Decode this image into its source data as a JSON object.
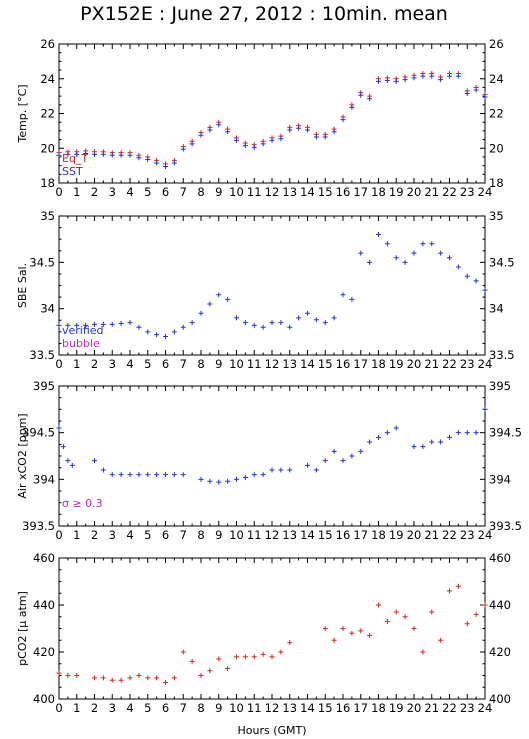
{
  "title": "PX152E : June 27, 2012 : 10min. mean",
  "xlabel": "Hours (GMT)",
  "x_ticks": [
    "0",
    "1",
    "2",
    "3",
    "4",
    "5",
    "6",
    "7",
    "8",
    "9",
    "10",
    "11",
    "12",
    "13",
    "14",
    "15",
    "16",
    "17",
    "18",
    "19",
    "20",
    "21",
    "22",
    "23",
    "24"
  ],
  "colors": {
    "red": "#dd2222",
    "blue": "#2233dd",
    "magenta": "#cc22cc",
    "purple": "#7733bb"
  },
  "chart_data": [
    {
      "type": "scatter",
      "ylabel": "Temp. [°C]",
      "ylim": [
        18,
        26
      ],
      "yticks": [
        "18",
        "20",
        "22",
        "24",
        "26"
      ],
      "legend": [
        {
          "label": "Eq_T",
          "color": "#dd2222"
        },
        {
          "label": "SST",
          "color": "#2233dd"
        }
      ],
      "series": [
        {
          "name": "Eq_T",
          "color": "#dd2222",
          "x": [
            0,
            0.5,
            1,
            1.5,
            2,
            2.5,
            3,
            3.5,
            4,
            4.5,
            5,
            5.5,
            6,
            6.5,
            7,
            7.5,
            8,
            8.5,
            9,
            9.5,
            10,
            10.5,
            11,
            11.5,
            12,
            12.5,
            13,
            13.5,
            14,
            14.5,
            15,
            15.5,
            16,
            16.5,
            17,
            17.5,
            18,
            18.5,
            19,
            19.5,
            20,
            20.5,
            21,
            21.5,
            22,
            22.5,
            23,
            23.5,
            24
          ],
          "y": [
            19.75,
            19.8,
            19.8,
            19.85,
            19.8,
            19.8,
            19.75,
            19.75,
            19.75,
            19.6,
            19.5,
            19.3,
            19.1,
            19.3,
            20.1,
            20.4,
            20.9,
            21.2,
            21.5,
            21.1,
            20.6,
            20.3,
            20.2,
            20.4,
            20.6,
            20.7,
            21.2,
            21.3,
            21.2,
            20.8,
            20.8,
            21.1,
            21.8,
            22.5,
            23.2,
            23.0,
            24.0,
            24.05,
            24.0,
            24.1,
            24.2,
            24.3,
            24.3,
            24.1,
            24.3,
            24.3,
            23.3,
            23.5,
            23.1
          ]
        },
        {
          "name": "SST",
          "color": "#2233dd",
          "x": [
            0,
            0.5,
            1,
            1.5,
            2,
            2.5,
            3,
            3.5,
            4,
            4.5,
            5,
            5.5,
            6,
            6.5,
            7,
            7.5,
            8,
            8.5,
            9,
            9.5,
            10,
            10.5,
            11,
            11.5,
            12,
            12.5,
            13,
            13.5,
            14,
            14.5,
            15,
            15.5,
            16,
            16.5,
            17,
            17.5,
            18,
            18.5,
            19,
            19.5,
            20,
            20.5,
            21,
            21.5,
            22,
            22.5,
            23,
            23.5,
            24
          ],
          "y": [
            19.6,
            19.65,
            19.65,
            19.7,
            19.65,
            19.65,
            19.6,
            19.6,
            19.6,
            19.45,
            19.35,
            19.15,
            18.95,
            19.15,
            19.95,
            20.25,
            20.75,
            21.05,
            21.35,
            20.95,
            20.45,
            20.15,
            20.05,
            20.25,
            20.45,
            20.55,
            21.05,
            21.15,
            21.05,
            20.65,
            20.65,
            20.95,
            21.65,
            22.35,
            23.05,
            22.85,
            23.85,
            23.9,
            23.85,
            23.95,
            24.05,
            24.15,
            24.15,
            23.95,
            24.15,
            24.15,
            23.15,
            23.35,
            22.95
          ]
        }
      ]
    },
    {
      "type": "scatter",
      "ylabel": "SBE Sal.",
      "ylim": [
        33.5,
        35
      ],
      "yticks": [
        "33.5",
        "34",
        "34.5",
        "35"
      ],
      "legend": [
        {
          "label": "verified",
          "color": "#2233dd"
        },
        {
          "label": "bubble",
          "color": "#cc22cc"
        }
      ],
      "series": [
        {
          "name": "verified",
          "color": "#2233dd",
          "x": [
            0,
            0.5,
            1,
            1.5,
            2,
            2.5,
            3,
            3.5,
            4,
            4.5,
            5,
            5.5,
            6,
            6.5,
            7,
            7.5,
            8,
            8.5,
            9,
            9.5,
            10,
            10.5,
            11,
            11.5,
            12,
            12.5,
            13,
            13.5,
            14,
            14.5,
            15,
            15.5,
            16,
            16.5,
            17,
            17.5,
            18,
            18.5,
            19,
            19.5,
            20,
            20.5,
            21,
            21.5,
            22,
            22.5,
            23,
            23.5,
            24
          ],
          "y": [
            33.82,
            33.82,
            33.82,
            33.82,
            33.83,
            33.83,
            33.83,
            33.84,
            33.85,
            33.8,
            33.75,
            33.72,
            33.7,
            33.75,
            33.8,
            33.85,
            33.95,
            34.05,
            34.15,
            34.1,
            33.9,
            33.85,
            33.82,
            33.8,
            33.85,
            33.85,
            33.8,
            33.9,
            33.95,
            33.88,
            33.85,
            33.9,
            34.15,
            34.1,
            34.6,
            34.5,
            34.8,
            34.7,
            34.55,
            34.5,
            34.6,
            34.7,
            34.7,
            34.6,
            34.55,
            34.45,
            34.35,
            34.3,
            34.2
          ]
        }
      ]
    },
    {
      "type": "scatter",
      "ylabel": "Air xCO2 [ppm]",
      "ylim": [
        393.5,
        395
      ],
      "yticks": [
        "393.5",
        "394",
        "394.5",
        "395"
      ],
      "annotation": "σ ≥ 0.3",
      "series": [
        {
          "name": "Air xCO2",
          "color": "#2233dd",
          "x": [
            0,
            0.25,
            0.5,
            0.75,
            2,
            2.5,
            3,
            3.5,
            4,
            4.5,
            5,
            5.5,
            6,
            6.5,
            7,
            8,
            8.5,
            9,
            9.5,
            10,
            10.5,
            11,
            11.5,
            12,
            12.5,
            13,
            14,
            14.5,
            15,
            15.5,
            16,
            16.5,
            17,
            17.5,
            18,
            18.5,
            19,
            20,
            20.5,
            21,
            21.5,
            22,
            22.5,
            23,
            23.5,
            24
          ],
          "y": [
            394.55,
            394.35,
            394.2,
            394.15,
            394.2,
            394.1,
            394.05,
            394.05,
            394.05,
            394.05,
            394.05,
            394.05,
            394.05,
            394.05,
            394.05,
            394.0,
            393.98,
            393.97,
            393.98,
            394.0,
            394.02,
            394.05,
            394.05,
            394.1,
            394.1,
            394.1,
            394.15,
            394.1,
            394.2,
            394.3,
            394.2,
            394.25,
            394.3,
            394.4,
            394.45,
            394.5,
            394.55,
            394.35,
            394.35,
            394.4,
            394.4,
            394.45,
            394.5,
            394.5,
            394.5,
            394.75
          ]
        }
      ]
    },
    {
      "type": "scatter",
      "ylabel": "pCO2 [μ atm]",
      "ylim": [
        400,
        460
      ],
      "yticks": [
        "400",
        "420",
        "440",
        "460"
      ],
      "series": [
        {
          "name": "pCO2",
          "color": "#dd2222",
          "x": [
            0,
            0.5,
            1,
            2,
            2.5,
            3,
            3.5,
            4,
            4.5,
            5,
            5.5,
            6,
            6.5,
            7,
            7.5,
            8,
            8.5,
            9,
            9.5,
            10,
            10.5,
            11,
            11.5,
            12,
            12.5,
            13,
            15,
            15.5,
            16,
            16.5,
            17,
            17.5,
            18,
            18.5,
            19,
            19.5,
            20,
            20.5,
            21,
            21.5,
            22,
            22.5,
            23,
            23.5,
            24
          ],
          "y": [
            411,
            410,
            410,
            409,
            409,
            408,
            408,
            409,
            410,
            409,
            409,
            407,
            409,
            420,
            416,
            410,
            412,
            417,
            413,
            418,
            418,
            418,
            419,
            418,
            420,
            424,
            430,
            425,
            430,
            428,
            429,
            427,
            440,
            433,
            437,
            435,
            430,
            420,
            437,
            425,
            446,
            448,
            432,
            436,
            440
          ]
        }
      ]
    }
  ]
}
